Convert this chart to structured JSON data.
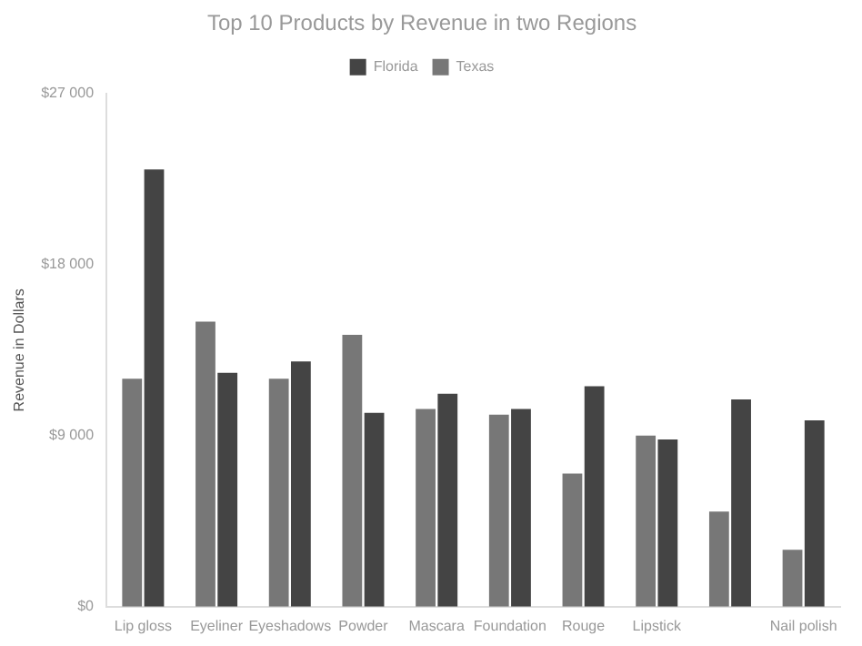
{
  "chart_data": {
    "type": "bar",
    "title": "Top 10 Products by Revenue in two Regions",
    "ylabel": "Revenue in Dollars",
    "categories": [
      "Lip gloss",
      "Eyeliner",
      "Eyeshadows",
      "Powder",
      "Mascara",
      "Foundation",
      "Rouge",
      "Lipstick",
      null,
      "Nail polish"
    ],
    "series": [
      {
        "name": "Florida",
        "color": "#444444",
        "values": [
          23000,
          12300,
          12900,
          10200,
          11200,
          10400,
          11600,
          8800,
          10900,
          9800
        ]
      },
      {
        "name": "Texas",
        "color": "#777777",
        "values": [
          12000,
          15000,
          12000,
          14300,
          10400,
          10100,
          7000,
          9000,
          5000,
          3000
        ]
      }
    ],
    "ylim": [
      0,
      27000
    ],
    "yticks": [
      {
        "value": 0,
        "label": "$0"
      },
      {
        "value": 9000,
        "label": "$9 000"
      },
      {
        "value": 18000,
        "label": "$18 000"
      },
      {
        "value": 27000,
        "label": "$27 000"
      }
    ],
    "grid": false,
    "legend": "top"
  }
}
